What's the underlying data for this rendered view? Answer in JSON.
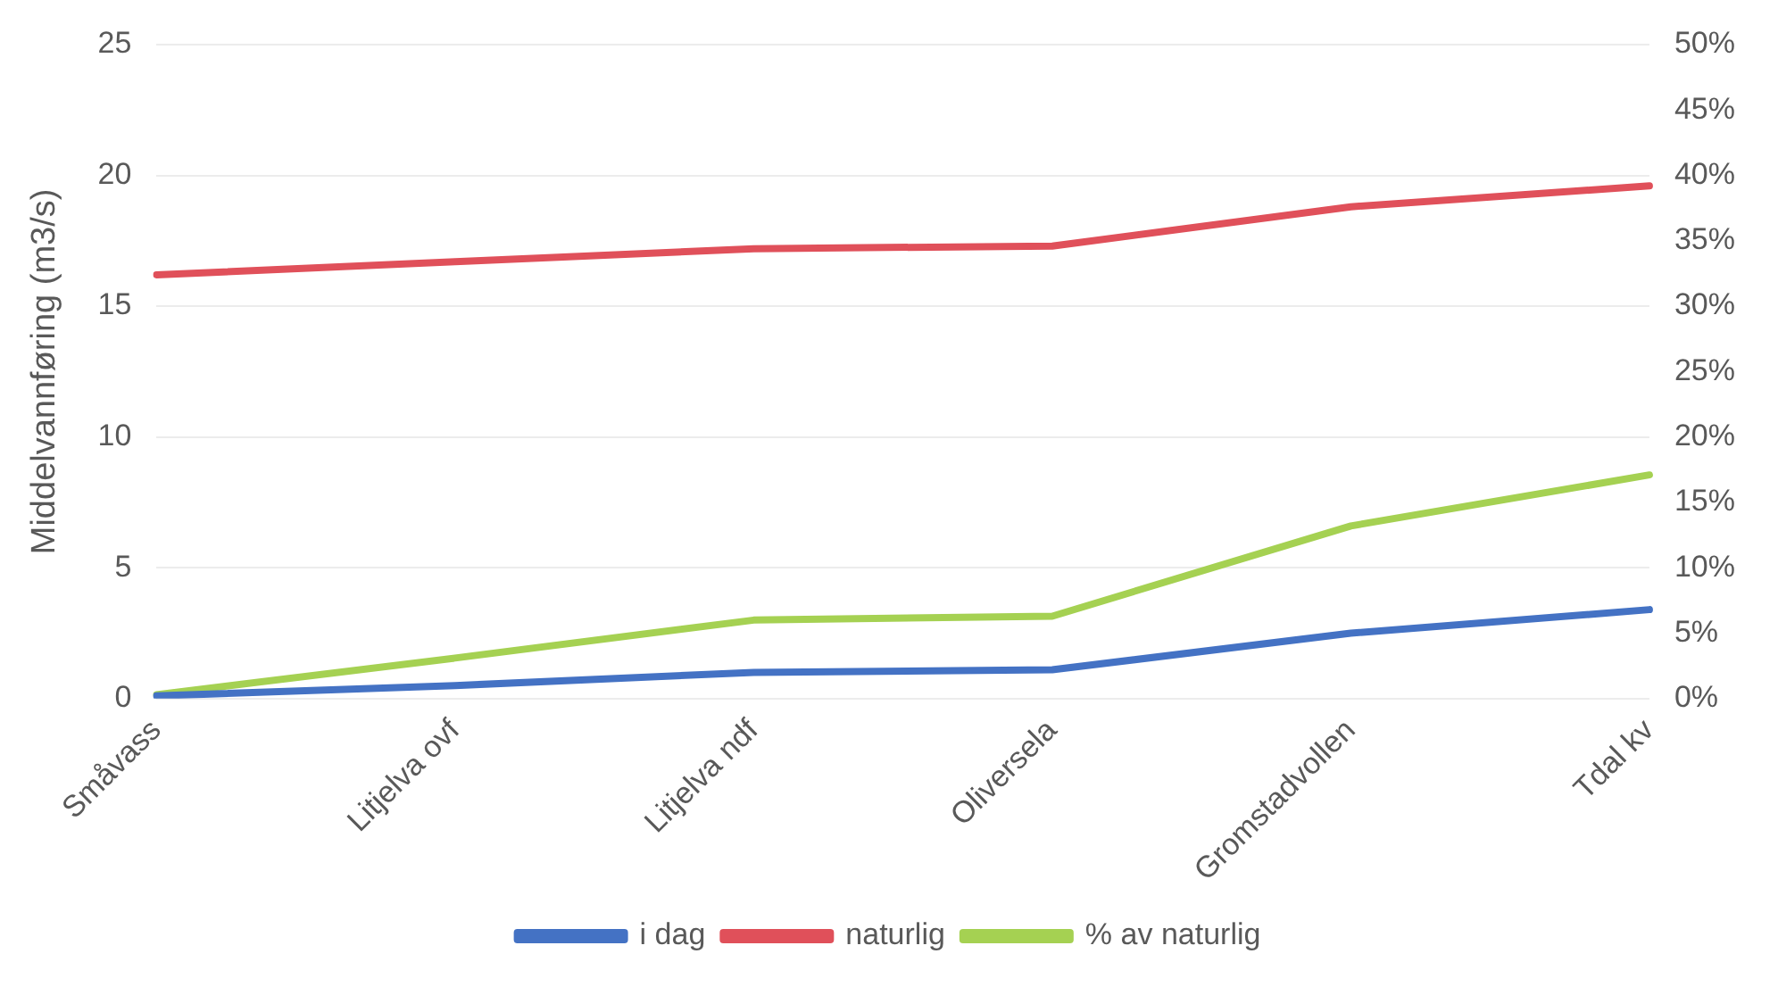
{
  "chart_data": {
    "type": "line",
    "ylabel": "Middelvannføring (m3/s)",
    "categories": [
      "Småvass",
      "Litjelva ovf",
      "Litjelva ndf",
      "Oliversela",
      "Gromstadvollen",
      "Tdal kv"
    ],
    "series": [
      {
        "name": "i dag",
        "color": "#4472c4",
        "values": [
          0.1,
          0.5,
          1.0,
          1.1,
          2.5,
          3.4
        ]
      },
      {
        "name": "naturlig",
        "color": "#e0505a",
        "values": [
          16.2,
          16.7,
          17.2,
          17.3,
          18.8,
          19.6
        ]
      },
      {
        "name": "% av naturlig",
        "color": "#a5d152",
        "axis": "y2",
        "values": [
          0.3,
          3.1,
          6.0,
          6.3,
          13.2,
          17.1
        ]
      }
    ],
    "ylim": [
      0,
      25
    ],
    "yticks": [
      0,
      5,
      10,
      15,
      20,
      25
    ],
    "y2lim": [
      0,
      50
    ],
    "y2ticks": [
      {
        "value": 0,
        "label": "0%"
      },
      {
        "value": 5,
        "label": "5%"
      },
      {
        "value": 10,
        "label": "10%"
      },
      {
        "value": 15,
        "label": "15%"
      },
      {
        "value": 20,
        "label": "20%"
      },
      {
        "value": 25,
        "label": "25%"
      },
      {
        "value": 30,
        "label": "30%"
      },
      {
        "value": 35,
        "label": "35%"
      },
      {
        "value": 40,
        "label": "40%"
      },
      {
        "value": 45,
        "label": "45%"
      },
      {
        "value": 50,
        "label": "50%"
      }
    ],
    "grid": "y",
    "legend": "bottom",
    "marker": "none",
    "line_style": "solid"
  }
}
